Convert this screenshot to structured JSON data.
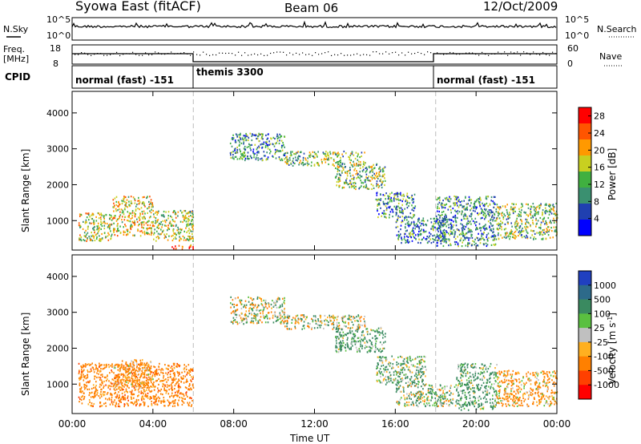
{
  "header": {
    "station": "Syowa East (fitACF)",
    "beam": "Beam 06",
    "date": "12/Oct/2009"
  },
  "summary_panels": {
    "nsky": {
      "left_label": "N.Sky",
      "right_label": "N.Search",
      "ticks": [
        "10^5",
        "10^0"
      ]
    },
    "freq": {
      "left_label_1": "Freq.",
      "left_label_2": "[MHz]",
      "left_ticks": [
        "18",
        "8"
      ],
      "right_label": "Nave",
      "right_ticks": [
        "60",
        "0"
      ]
    },
    "cpid": {
      "label": "CPID",
      "segments": [
        "normal (fast) -151",
        "themis 3300",
        "normal (fast) -151"
      ]
    }
  },
  "chart_data": [
    {
      "type": "heatmap",
      "title": "",
      "quantity": "power",
      "xlabel": "",
      "ylabel": "Slant Range [km]",
      "x_ticks": [
        "00:00",
        "04:00",
        "08:00",
        "12:00",
        "16:00",
        "20:00",
        "00:00"
      ],
      "x_range_hours": [
        0,
        24
      ],
      "y_ticks": [
        1000,
        2000,
        3000,
        4000
      ],
      "y_range_km": [
        180,
        4600
      ],
      "colorbar": {
        "label": "Power [dB]",
        "ticks": [
          4,
          8,
          12,
          16,
          20,
          24,
          28
        ],
        "range": [
          0,
          30
        ],
        "colors": [
          "#0000ff",
          "#2040b0",
          "#3a9070",
          "#40b040",
          "#c8d020",
          "#ff9900",
          "#ff5500",
          "#ff0000"
        ]
      },
      "scatter_regions": [
        {
          "t": [
            0.3,
            2.0
          ],
          "r": [
            450,
            1250
          ],
          "level": 16
        },
        {
          "t": [
            2.0,
            4.0
          ],
          "r": [
            600,
            1700
          ],
          "level": 18
        },
        {
          "t": [
            4.0,
            6.0
          ],
          "r": [
            450,
            1300
          ],
          "level": 15
        },
        {
          "t": [
            4.8,
            6.0
          ],
          "r": [
            220,
            340
          ],
          "level": 24
        },
        {
          "t": [
            7.8,
            10.5
          ],
          "r": [
            2700,
            3450
          ],
          "level": 10
        },
        {
          "t": [
            10.5,
            14.5
          ],
          "r": [
            2550,
            2950
          ],
          "level": 14
        },
        {
          "t": [
            13.0,
            15.5
          ],
          "r": [
            1900,
            2600
          ],
          "level": 14
        },
        {
          "t": [
            15.0,
            17.0
          ],
          "r": [
            1100,
            1800
          ],
          "level": 10
        },
        {
          "t": [
            16.0,
            18.5
          ],
          "r": [
            400,
            1100
          ],
          "level": 9
        },
        {
          "t": [
            18.0,
            21.0
          ],
          "r": [
            300,
            1700
          ],
          "level": 10
        },
        {
          "t": [
            21.0,
            24.0
          ],
          "r": [
            500,
            1500
          ],
          "level": 14
        }
      ]
    },
    {
      "type": "heatmap",
      "title": "",
      "quantity": "velocity",
      "xlabel": "Time UT",
      "ylabel": "Slant Range [km]",
      "x_ticks": [
        "00:00",
        "04:00",
        "08:00",
        "12:00",
        "16:00",
        "20:00",
        "00:00"
      ],
      "x_range_hours": [
        0,
        24
      ],
      "y_ticks": [
        1000,
        2000,
        3000,
        4000
      ],
      "y_range_km": [
        180,
        4600
      ],
      "colorbar": {
        "label": "Velocity [m s^-1]",
        "ticks": [
          1000,
          500,
          100,
          25,
          -25,
          -100,
          -500,
          -1000
        ],
        "colors": [
          "#2040c0",
          "#2d6a8a",
          "#3a8a60",
          "#5ac040",
          "#c0c0c0",
          "#ffb020",
          "#ff8000",
          "#ff4000",
          "#ff0000"
        ]
      },
      "scatter_regions": [
        {
          "t": [
            0.3,
            6.0
          ],
          "r": [
            400,
            1600
          ],
          "level": -300
        },
        {
          "t": [
            2.0,
            4.0
          ],
          "r": [
            900,
            1700
          ],
          "level": -200
        },
        {
          "t": [
            7.8,
            10.5
          ],
          "r": [
            2700,
            3450
          ],
          "level": 0
        },
        {
          "t": [
            10.5,
            14.5
          ],
          "r": [
            2550,
            2950
          ],
          "level": 10
        },
        {
          "t": [
            13.0,
            15.5
          ],
          "r": [
            1900,
            2600
          ],
          "level": 200
        },
        {
          "t": [
            15.0,
            17.5
          ],
          "r": [
            1000,
            1800
          ],
          "level": 150
        },
        {
          "t": [
            16.0,
            19.0
          ],
          "r": [
            400,
            1000
          ],
          "level": 80
        },
        {
          "t": [
            19.0,
            21.0
          ],
          "r": [
            300,
            1600
          ],
          "level": 200
        },
        {
          "t": [
            21.0,
            24.0
          ],
          "r": [
            400,
            1400
          ],
          "level": -150
        }
      ]
    }
  ]
}
